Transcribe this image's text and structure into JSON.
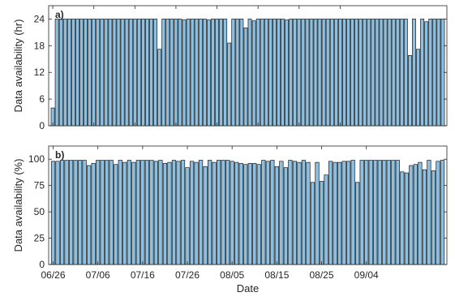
{
  "chart_data": [
    {
      "type": "bar",
      "panel_label": "a)",
      "ylabel": "Data availability (hr)",
      "ylim": [
        0,
        27
      ],
      "yticks": [
        0,
        6,
        12,
        18,
        24
      ],
      "grid": false,
      "bar_color": "#8DC0E0",
      "edge_color": "#1a1a1a",
      "values": [
        4,
        24,
        24,
        24,
        24,
        24,
        24,
        24,
        24,
        24,
        24,
        24,
        24,
        24,
        24,
        24,
        24,
        24,
        24,
        24,
        24,
        24,
        24,
        24,
        24,
        24,
        17.2,
        24,
        24,
        24,
        24,
        24,
        23.8,
        24,
        24,
        24,
        24,
        24,
        23.8,
        24,
        24,
        24,
        24,
        18.6,
        24,
        24,
        24,
        22,
        24,
        23.6,
        24,
        24,
        24,
        24,
        24,
        24,
        24,
        23.8,
        24,
        24,
        24,
        24,
        24,
        24,
        24,
        24,
        24,
        24,
        24,
        24,
        24,
        24,
        24,
        24,
        24,
        24,
        24,
        24,
        24,
        24,
        24,
        24,
        24,
        24,
        24,
        24,
        24,
        15.8,
        24,
        17.2,
        24,
        23.4,
        24,
        24,
        24,
        24
      ]
    },
    {
      "type": "bar",
      "panel_label": "b)",
      "xlabel": "Date",
      "ylabel": "Data availability (%)",
      "ylim": [
        0,
        112.5
      ],
      "yticks": [
        0,
        25,
        50,
        75,
        100
      ],
      "grid": false,
      "bar_color": "#8DC0E0",
      "edge_color": "#1a1a1a",
      "x_tick_labels": [
        "06/26",
        "07/06",
        "07/16",
        "07/26",
        "08/05",
        "08/15",
        "08/25",
        "09/04"
      ],
      "values": [
        98,
        98,
        99,
        99,
        99,
        99,
        99,
        99,
        94,
        96,
        99,
        99,
        99,
        99,
        95,
        99,
        97,
        99,
        97,
        99,
        99,
        99,
        99,
        98,
        99,
        96,
        97,
        99,
        98,
        99,
        92,
        98,
        97,
        99,
        93,
        99,
        97,
        99,
        99,
        99,
        98,
        97,
        96,
        95,
        96,
        96,
        95,
        99,
        98,
        99,
        93,
        98,
        92,
        99,
        98,
        97,
        99,
        97,
        78,
        97,
        79,
        85,
        98,
        97,
        97,
        98,
        98,
        99,
        78,
        99,
        99,
        99,
        99,
        99,
        99,
        99,
        99,
        99,
        88,
        87,
        94,
        95,
        97,
        90,
        99,
        89,
        98,
        99
      ]
    }
  ]
}
